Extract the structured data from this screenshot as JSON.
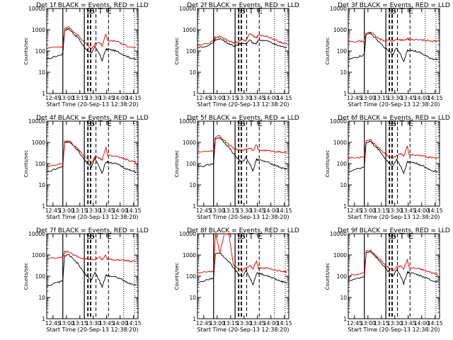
{
  "chart_data": [
    {
      "type": "line",
      "title": "Det 1f BLACK = Events, RED = LLD",
      "ylabel": "Counts/sec",
      "xlabel": "Start Time (20-Sep-13 12:38:20)",
      "yscale": "log",
      "ylim": [
        1,
        10000
      ],
      "x_ticks": [
        "12:45",
        "13:00",
        "13:15",
        "13:30",
        "13:45",
        "14:00",
        "14:15"
      ],
      "y_ticks": [
        "1",
        "10",
        "100",
        "1000",
        "10000"
      ],
      "markers": [
        "S",
        "S",
        "T",
        "E"
      ],
      "x": [
        "12:38",
        "12:50",
        "12:56",
        "12:58",
        "13:03",
        "13:08",
        "13:13",
        "13:18",
        "13:23",
        "13:28",
        "13:32",
        "13:37",
        "13:40",
        "13:44",
        "13:46",
        "13:52",
        "13:58",
        "14:03",
        "14:08",
        "14:13",
        "14:18"
      ],
      "series": [
        {
          "name": "BLACK = Events",
          "color": "#000000",
          "values": [
            40,
            60,
            70,
            1000,
            1100,
            650,
            420,
            200,
            110,
            75,
            170,
            70,
            35,
            120,
            120,
            110,
            90,
            70,
            55,
            45,
            40
          ]
        },
        {
          "name": "RED = LLD",
          "color": "#dd0000",
          "values": [
            130,
            160,
            165,
            1200,
            1300,
            800,
            550,
            320,
            200,
            120,
            220,
            250,
            180,
            650,
            300,
            300,
            280,
            200,
            170,
            150,
            140
          ]
        }
      ]
    },
    {
      "type": "line",
      "title": "Det 2f BLACK = Events, RED = LLD",
      "ylabel": "Counts/sec",
      "xlabel": "Start Time (20-Sep-13 12:38:20)",
      "yscale": "log",
      "ylim": [
        1,
        10000
      ],
      "x_ticks": [
        "12:45",
        "13:00",
        "13:15",
        "13:30",
        "13:45",
        "14:00",
        "14:15"
      ],
      "y_ticks": [
        "1",
        "10",
        "100",
        "1000",
        "10000"
      ],
      "markers": [
        "S",
        "S",
        "T",
        "E"
      ],
      "x": [
        "12:38",
        "12:50",
        "12:56",
        "12:58",
        "13:03",
        "13:08",
        "13:13",
        "13:18",
        "13:23",
        "13:28",
        "13:32",
        "13:37",
        "13:40",
        "13:44",
        "13:46",
        "13:52",
        "13:58",
        "14:03",
        "14:08",
        "14:13",
        "14:18"
      ],
      "series": [
        {
          "name": "BLACK = Events",
          "color": "#000000",
          "values": [
            140,
            180,
            260,
            340,
            380,
            300,
            220,
            170,
            200,
            240,
            220,
            330,
            230,
            220,
            330,
            320,
            280,
            220,
            180,
            160,
            150
          ]
        },
        {
          "name": "RED = LLD",
          "color": "#dd0000",
          "values": [
            180,
            230,
            330,
            430,
            480,
            380,
            300,
            240,
            280,
            350,
            310,
            700,
            520,
            430,
            560,
            520,
            450,
            360,
            290,
            240,
            220
          ]
        }
      ]
    },
    {
      "type": "line",
      "title": "Det 3f BLACK = Events, RED = LLD",
      "ylabel": "Counts/sec",
      "xlabel": "Start Time (20-Sep-13 12:38:20)",
      "yscale": "log",
      "ylim": [
        1,
        10000
      ],
      "x_ticks": [
        "12:45",
        "13:00",
        "13:15",
        "13:30",
        "13:45",
        "14:00",
        "14:15"
      ],
      "y_ticks": [
        "1",
        "10",
        "100",
        "1000",
        "10000"
      ],
      "markers": [
        "S",
        "S",
        "T",
        "E"
      ],
      "x": [
        "12:38",
        "12:50",
        "12:56",
        "12:58",
        "13:03",
        "13:08",
        "13:13",
        "13:18",
        "13:23",
        "13:28",
        "13:32",
        "13:37",
        "13:40",
        "13:44",
        "13:46",
        "13:52",
        "13:58",
        "14:03",
        "14:08",
        "14:13",
        "14:18"
      ],
      "series": [
        {
          "name": "BLACK = Events",
          "color": "#000000",
          "values": [
            40,
            55,
            65,
            650,
            700,
            420,
            250,
            150,
            100,
            70,
            150,
            60,
            30,
            110,
            110,
            100,
            85,
            65,
            50,
            42,
            40
          ]
        },
        {
          "name": "RED = LLD",
          "color": "#dd0000",
          "values": [
            260,
            280,
            290,
            700,
            800,
            520,
            360,
            310,
            330,
            290,
            350,
            340,
            310,
            380,
            340,
            340,
            330,
            320,
            310,
            300,
            300
          ]
        }
      ]
    },
    {
      "type": "line",
      "title": "Det 4f BLACK = Events, RED = LLD",
      "ylabel": "Counts/sec",
      "xlabel": "Start Time (20-Sep-13 12:38:20)",
      "yscale": "log",
      "ylim": [
        1,
        10000
      ],
      "x_ticks": [
        "12:45",
        "13:00",
        "13:15",
        "13:30",
        "13:45",
        "14:00",
        "14:15"
      ],
      "y_ticks": [
        "1",
        "10",
        "100",
        "1000",
        "10000"
      ],
      "markers": [
        "S",
        "S",
        "T",
        "E"
      ],
      "x": [
        "12:38",
        "12:50",
        "12:56",
        "12:58",
        "13:03",
        "13:08",
        "13:13",
        "13:18",
        "13:23",
        "13:28",
        "13:32",
        "13:37",
        "13:40",
        "13:44",
        "13:46",
        "13:52",
        "13:58",
        "14:03",
        "14:08",
        "14:13",
        "14:18"
      ],
      "series": [
        {
          "name": "BLACK = Events",
          "color": "#000000",
          "values": [
            40,
            60,
            75,
            1000,
            1100,
            650,
            420,
            200,
            110,
            75,
            170,
            70,
            35,
            120,
            120,
            110,
            90,
            70,
            55,
            45,
            40
          ]
        },
        {
          "name": "RED = LLD",
          "color": "#dd0000",
          "values": [
            70,
            90,
            100,
            1100,
            1200,
            750,
            500,
            280,
            170,
            110,
            220,
            180,
            140,
            600,
            250,
            240,
            220,
            180,
            150,
            130,
            120
          ]
        }
      ]
    },
    {
      "type": "line",
      "title": "Det 5f BLACK = Events, RED = LLD",
      "ylabel": "Counts/sec",
      "xlabel": "Start Time (20-Sep-13 12:38:20)",
      "yscale": "log",
      "ylim": [
        1,
        10000
      ],
      "x_ticks": [
        "12:45",
        "13:00",
        "13:15",
        "13:30",
        "13:45",
        "14:00",
        "14:15"
      ],
      "y_ticks": [
        "1",
        "10",
        "100",
        "1000",
        "10000"
      ],
      "markers": [
        "S",
        "S",
        "T",
        "E"
      ],
      "x": [
        "12:38",
        "12:50",
        "12:56",
        "12:58",
        "13:03",
        "13:08",
        "13:13",
        "13:18",
        "13:23",
        "13:28",
        "13:32",
        "13:37",
        "13:40",
        "13:44",
        "13:46",
        "13:52",
        "13:58",
        "14:03",
        "14:08",
        "14:13",
        "14:18"
      ],
      "series": [
        {
          "name": "BLACK = Events",
          "color": "#000000",
          "values": [
            70,
            85,
            95,
            1500,
            1700,
            1000,
            600,
            300,
            170,
            110,
            200,
            90,
            45,
            160,
            150,
            130,
            110,
            90,
            75,
            60,
            55
          ]
        },
        {
          "name": "RED = LLD",
          "color": "#dd0000",
          "values": [
            360,
            370,
            380,
            1800,
            2000,
            1200,
            800,
            520,
            430,
            420,
            480,
            560,
            420,
            800,
            430,
            420,
            400,
            380,
            360,
            340,
            330
          ]
        }
      ]
    },
    {
      "type": "line",
      "title": "Det 6f BLACK = Events, RED = LLD",
      "ylabel": "Counts/sec",
      "xlabel": "Start Time (20-Sep-13 12:38:20)",
      "yscale": "log",
      "ylim": [
        1,
        10000
      ],
      "x_ticks": [
        "12:45",
        "13:00",
        "13:15",
        "13:30",
        "13:45",
        "14:00",
        "14:15"
      ],
      "y_ticks": [
        "1",
        "10",
        "100",
        "1000",
        "10000"
      ],
      "markers": [
        "S",
        "S",
        "T",
        "E"
      ],
      "x": [
        "12:38",
        "12:50",
        "12:56",
        "12:58",
        "13:03",
        "13:08",
        "13:13",
        "13:18",
        "13:23",
        "13:28",
        "13:32",
        "13:37",
        "13:40",
        "13:44",
        "13:46",
        "13:52",
        "13:58",
        "14:03",
        "14:08",
        "14:13",
        "14:18"
      ],
      "series": [
        {
          "name": "BLACK = Events",
          "color": "#000000",
          "values": [
            40,
            60,
            70,
            1000,
            1100,
            650,
            420,
            200,
            110,
            75,
            160,
            70,
            35,
            120,
            120,
            110,
            90,
            70,
            55,
            45,
            40
          ]
        },
        {
          "name": "RED = LLD",
          "color": "#dd0000",
          "values": [
            180,
            200,
            210,
            1200,
            1300,
            780,
            520,
            320,
            230,
            180,
            250,
            300,
            220,
            650,
            260,
            250,
            240,
            220,
            200,
            190,
            180
          ]
        }
      ]
    },
    {
      "type": "line",
      "title": "Det 7f BLACK = Events, RED = LLD",
      "ylabel": "Counts/sec",
      "xlabel": "Start Time (20-Sep-13 12:38:20)",
      "yscale": "log",
      "ylim": [
        1,
        10000
      ],
      "x_ticks": [
        "12:45",
        "13:00",
        "13:15",
        "13:30",
        "13:45",
        "14:00",
        "14:15"
      ],
      "y_ticks": [
        "1",
        "10",
        "100",
        "1000",
        "10000"
      ],
      "markers": [
        "S",
        "S",
        "T",
        "E"
      ],
      "x": [
        "12:38",
        "12:50",
        "12:56",
        "12:58",
        "13:03",
        "13:08",
        "13:13",
        "13:18",
        "13:23",
        "13:28",
        "13:32",
        "13:37",
        "13:40",
        "13:44",
        "13:46",
        "13:52",
        "13:58",
        "14:03",
        "14:08",
        "14:13",
        "14:18"
      ],
      "series": [
        {
          "name": "BLACK = Events",
          "color": "#000000",
          "values": [
            35,
            50,
            60,
            900,
            1000,
            600,
            380,
            180,
            100,
            70,
            150,
            60,
            30,
            110,
            110,
            100,
            85,
            65,
            50,
            42,
            38
          ]
        },
        {
          "name": "RED = LLD",
          "color": "#dd0000",
          "values": [
            700,
            720,
            750,
            1400,
            1500,
            1000,
            800,
            680,
            650,
            600,
            640,
            800,
            600,
            1000,
            620,
            600,
            580,
            560,
            540,
            520,
            500
          ]
        }
      ]
    },
    {
      "type": "line",
      "title": "Det 8f BLACK = Events, RED = LLD",
      "ylabel": "Counts/sec",
      "xlabel": "Start Time (20-Sep-13 12:38:20)",
      "yscale": "log",
      "ylim": [
        1,
        10000
      ],
      "x_ticks": [
        "12:45",
        "13:00",
        "13:15",
        "13:30",
        "13:45",
        "14:00",
        "14:15"
      ],
      "y_ticks": [
        "1",
        "10",
        "100",
        "1000",
        "10000"
      ],
      "markers": [
        "S",
        "S",
        "T",
        "E"
      ],
      "x": [
        "12:38",
        "12:50",
        "12:56",
        "12:58",
        "13:03",
        "13:08",
        "13:13",
        "13:18",
        "13:23",
        "13:28",
        "13:32",
        "13:37",
        "13:40",
        "13:44",
        "13:46",
        "13:52",
        "13:58",
        "14:03",
        "14:08",
        "14:13",
        "14:18"
      ],
      "series": [
        {
          "name": "BLACK = Events",
          "color": "#000000",
          "values": [
            50,
            70,
            80,
            1200,
            1300,
            800,
            500,
            250,
            140,
            90,
            190,
            80,
            40,
            140,
            140,
            120,
            100,
            80,
            65,
            55,
            50
          ]
        },
        {
          "name": "RED = LLD",
          "color": "#dd0000",
          "values": [
            150,
            160,
            170,
            10000,
            1300,
            10000,
            10000,
            350,
            230,
            180,
            250,
            300,
            220,
            550,
            240,
            250,
            230,
            200,
            180,
            170,
            160
          ]
        }
      ]
    },
    {
      "type": "line",
      "title": "Det 9f BLACK = Events, RED = LLD",
      "ylabel": "Counts/sec",
      "xlabel": "Start Time (20-Sep-13 12:38:20)",
      "yscale": "log",
      "ylim": [
        1,
        10000
      ],
      "x_ticks": [
        "12:45",
        "13:00",
        "13:15",
        "13:30",
        "13:45",
        "14:00",
        "14:15"
      ],
      "y_ticks": [
        "1",
        "10",
        "100",
        "1000",
        "10000"
      ],
      "markers": [
        "S",
        "S",
        "T",
        "E"
      ],
      "x": [
        "12:38",
        "12:50",
        "12:56",
        "12:58",
        "13:03",
        "13:08",
        "13:13",
        "13:18",
        "13:23",
        "13:28",
        "13:32",
        "13:37",
        "13:40",
        "13:44",
        "13:46",
        "13:52",
        "13:58",
        "14:03",
        "14:08",
        "14:13",
        "14:18"
      ],
      "series": [
        {
          "name": "BLACK = Events",
          "color": "#000000",
          "values": [
            60,
            80,
            90,
            1300,
            1500,
            900,
            550,
            280,
            160,
            100,
            200,
            90,
            45,
            150,
            150,
            130,
            110,
            90,
            75,
            60,
            55
          ]
        },
        {
          "name": "RED = LLD",
          "color": "#dd0000",
          "values": [
            110,
            130,
            140,
            1500,
            1700,
            1000,
            650,
            380,
            250,
            180,
            260,
            300,
            230,
            600,
            250,
            240,
            220,
            190,
            160,
            140,
            130
          ]
        }
      ]
    }
  ]
}
